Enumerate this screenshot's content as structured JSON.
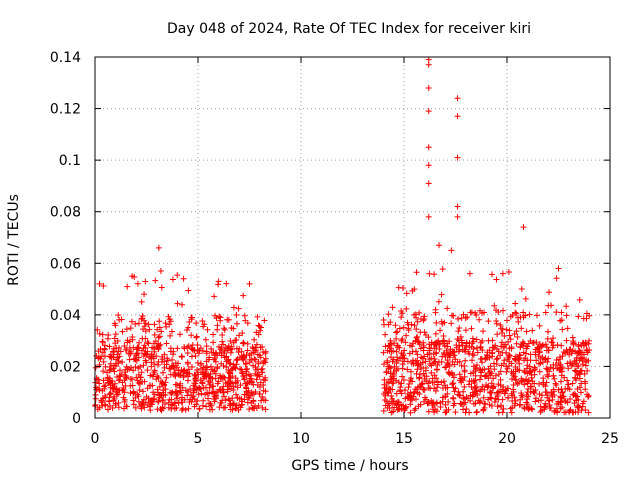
{
  "chart_data": {
    "type": "scatter",
    "title": "Day 048 of 2024, Rate Of TEC Index for receiver kiri",
    "xlabel": "GPS time / hours",
    "ylabel": "ROTI / TECUs",
    "xlim": [
      0,
      25
    ],
    "ylim": [
      0,
      0.14
    ],
    "grid": true,
    "marker": "+",
    "color": "#ff0000",
    "x_ticks": [
      0,
      5,
      10,
      15,
      20,
      25
    ],
    "x_tick_labels": [
      "0",
      "5",
      "10",
      "15",
      "20",
      "25"
    ],
    "y_ticks": [
      0,
      0.02,
      0.04,
      0.06,
      0.08,
      0.1,
      0.12,
      0.14
    ],
    "y_tick_labels": [
      "0",
      "0.02",
      "0.04",
      "0.06",
      "0.08",
      "0.1",
      "0.12",
      "0.14"
    ],
    "data_segments": [
      {
        "start_hour": 0.0,
        "end_hour": 8.3,
        "typical_min": 0.003,
        "typical_max": 0.028
      },
      {
        "start_hour": 14.0,
        "end_hour": 24.0,
        "typical_min": 0.002,
        "typical_max": 0.03
      }
    ],
    "notable_points": [
      {
        "x": 16.2,
        "y": 0.139
      },
      {
        "x": 16.2,
        "y": 0.137
      },
      {
        "x": 16.2,
        "y": 0.128
      },
      {
        "x": 16.2,
        "y": 0.119
      },
      {
        "x": 16.2,
        "y": 0.105
      },
      {
        "x": 16.2,
        "y": 0.098
      },
      {
        "x": 16.2,
        "y": 0.091
      },
      {
        "x": 16.2,
        "y": 0.078
      },
      {
        "x": 17.6,
        "y": 0.124
      },
      {
        "x": 17.6,
        "y": 0.117
      },
      {
        "x": 17.6,
        "y": 0.101
      },
      {
        "x": 17.6,
        "y": 0.082
      },
      {
        "x": 17.6,
        "y": 0.078
      },
      {
        "x": 20.8,
        "y": 0.074
      },
      {
        "x": 3.1,
        "y": 0.066
      },
      {
        "x": 3.2,
        "y": 0.057
      },
      {
        "x": 1.8,
        "y": 0.055
      },
      {
        "x": 4.3,
        "y": 0.054
      },
      {
        "x": 6.0,
        "y": 0.053
      },
      {
        "x": 7.5,
        "y": 0.052
      },
      {
        "x": 22.5,
        "y": 0.058
      },
      {
        "x": 16.7,
        "y": 0.067
      },
      {
        "x": 17.3,
        "y": 0.065
      },
      {
        "x": 18.2,
        "y": 0.056
      },
      {
        "x": 19.8,
        "y": 0.056
      },
      {
        "x": 15.5,
        "y": 0.05
      }
    ]
  }
}
